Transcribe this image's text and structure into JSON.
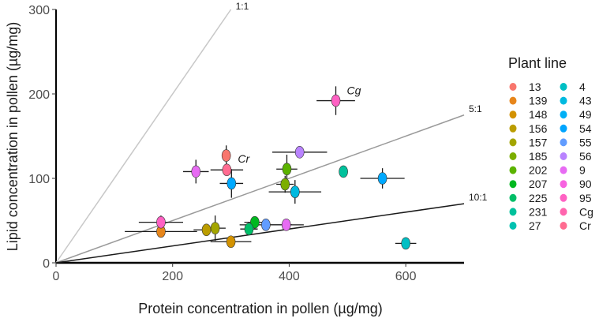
{
  "chart_data": {
    "type": "scatter",
    "xlabel": "Protein concentration in pollen (µg/mg)",
    "ylabel": "Lipid concentration in pollen (µg/mg)",
    "xlim": [
      0,
      700
    ],
    "ylim": [
      0,
      300
    ],
    "xticks": [
      "0",
      "200",
      "400",
      "600"
    ],
    "yticks": [
      "0",
      "100",
      "200",
      "300"
    ],
    "legend_title": "Plant line",
    "legend_position": "right",
    "ratio_lines": [
      {
        "label": "1:1",
        "slope": 1,
        "color": "#c8c8c8"
      },
      {
        "label": "5:1",
        "slope": 0.25,
        "color": "#9a9a9a"
      },
      {
        "label": "10:1",
        "slope": 0.1,
        "color": "#1a1a1a"
      }
    ],
    "annotations": [
      {
        "text": "Cg",
        "x": 480,
        "y": 192
      },
      {
        "text": "Cr",
        "x": 293,
        "y": 111
      }
    ],
    "points": [
      {
        "name": "13",
        "x": 292,
        "y": 127,
        "xerr": 0,
        "yerr": 12,
        "color": "#F8766D"
      },
      {
        "name": "139",
        "x": 180,
        "y": 37,
        "xerr": 62,
        "yerr": 4,
        "color": "#E7861B"
      },
      {
        "name": "148",
        "x": 300,
        "y": 25,
        "xerr": 35,
        "yerr": 5,
        "color": "#D39200"
      },
      {
        "name": "156",
        "x": 258,
        "y": 39,
        "xerr": 22,
        "yerr": 7,
        "color": "#BB9D00"
      },
      {
        "name": "157",
        "x": 273,
        "y": 41,
        "xerr": 18,
        "yerr": 15,
        "color": "#A3A500"
      },
      {
        "name": "185",
        "x": 393,
        "y": 93,
        "xerr": 15,
        "yerr": 10,
        "color": "#7CAE00"
      },
      {
        "name": "202",
        "x": 396,
        "y": 111,
        "xerr": 18,
        "yerr": 17,
        "color": "#5BB300"
      },
      {
        "name": "207",
        "x": 341,
        "y": 48,
        "xerr": 18,
        "yerr": 5,
        "color": "#00B81F"
      },
      {
        "name": "225",
        "x": 331,
        "y": 40,
        "xerr": 15,
        "yerr": 5,
        "color": "#00BE67"
      },
      {
        "name": "231",
        "x": 493,
        "y": 108,
        "xerr": 0,
        "yerr": 0,
        "color": "#00C19C"
      },
      {
        "name": "27",
        "x": 410,
        "y": 84,
        "xerr": 45,
        "yerr": 14,
        "color": "#00BFC4"
      },
      {
        "name": "4",
        "x": 600,
        "y": 23,
        "xerr": 18,
        "yerr": 0,
        "color": "#00BFC4"
      },
      {
        "name": "43",
        "x": 410,
        "y": 84,
        "xerr": 0,
        "yerr": 0,
        "color": "#00BAE0"
      },
      {
        "name": "49",
        "x": 560,
        "y": 100,
        "xerr": 38,
        "yerr": 12,
        "color": "#00A9FF"
      },
      {
        "name": "54",
        "x": 301,
        "y": 94,
        "xerr": 20,
        "yerr": 17,
        "color": "#00A9FF"
      },
      {
        "name": "55",
        "x": 360,
        "y": 45,
        "xerr": 45,
        "yerr": 0,
        "color": "#619CFF"
      },
      {
        "name": "56",
        "x": 418,
        "y": 131,
        "xerr": 47,
        "yerr": 0,
        "color": "#B983FF"
      },
      {
        "name": "9",
        "x": 240,
        "y": 108,
        "xerr": 22,
        "yerr": 14,
        "color": "#E76BF3"
      },
      {
        "name": "90",
        "x": 395,
        "y": 45,
        "xerr": 30,
        "yerr": 0,
        "color": "#E76BF3"
      },
      {
        "name": "95",
        "x": 180,
        "y": 48,
        "xerr": 38,
        "yerr": 8,
        "color": "#FF61C3"
      },
      {
        "name": "Cg",
        "x": 480,
        "y": 192,
        "xerr": 33,
        "yerr": 17,
        "color": "#FF61C3"
      },
      {
        "name": "Cr",
        "x": 293,
        "y": 110,
        "xerr": 28,
        "yerr": 0,
        "color": "#FF6C91"
      }
    ],
    "legend": [
      {
        "label": "13",
        "color": "#F8766D"
      },
      {
        "label": "139",
        "color": "#E7861B"
      },
      {
        "label": "148",
        "color": "#D39200"
      },
      {
        "label": "156",
        "color": "#BB9D00"
      },
      {
        "label": "157",
        "color": "#A3A500"
      },
      {
        "label": "185",
        "color": "#7CAE00"
      },
      {
        "label": "202",
        "color": "#5BB300"
      },
      {
        "label": "207",
        "color": "#00B81F"
      },
      {
        "label": "225",
        "color": "#00BE67"
      },
      {
        "label": "231",
        "color": "#00C19C"
      },
      {
        "label": "27",
        "color": "#00C1B0"
      },
      {
        "label": "4",
        "color": "#00BFC4"
      },
      {
        "label": "43",
        "color": "#00BAE0"
      },
      {
        "label": "49",
        "color": "#00B0F6"
      },
      {
        "label": "54",
        "color": "#00A5FF"
      },
      {
        "label": "55",
        "color": "#619CFF"
      },
      {
        "label": "56",
        "color": "#B983FF"
      },
      {
        "label": "9",
        "color": "#E76BF3"
      },
      {
        "label": "90",
        "color": "#F763E0"
      },
      {
        "label": "95",
        "color": "#FF61C3"
      },
      {
        "label": "Cg",
        "color": "#FF65AE"
      },
      {
        "label": "Cr",
        "color": "#FF6C91"
      }
    ]
  }
}
